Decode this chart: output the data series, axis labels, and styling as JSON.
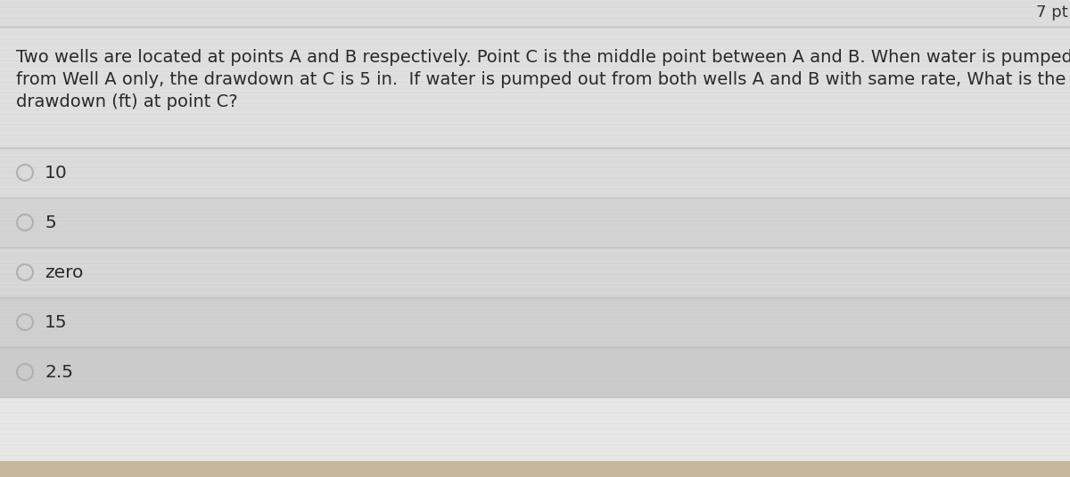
{
  "points_text": "7 pt",
  "question_text_lines": [
    "Two wells are located at points A and B respectively. Point C is the middle point between A and B. When water is pumped out",
    "from Well A only, the drawdown at C is 5 in.  If water is pumped out from both wells A and B with same rate, What is the",
    "drawdown (ft) at point C?"
  ],
  "options": [
    "10",
    "5",
    "zero",
    "15",
    "2.5"
  ],
  "bg_color_main": "#e8e8e8",
  "bg_color_question": "#e4e4e4",
  "bg_color_options_odd": "#dcdcdc",
  "bg_color_options_even": "#d8d8d8",
  "divider_color": "#c0c0c0",
  "text_color": "#2a2a2a",
  "circle_edge_color": "#b0b0b0",
  "points_color": "#333333",
  "font_size_question": 14.0,
  "font_size_options": 14.5,
  "font_size_points": 13.0
}
